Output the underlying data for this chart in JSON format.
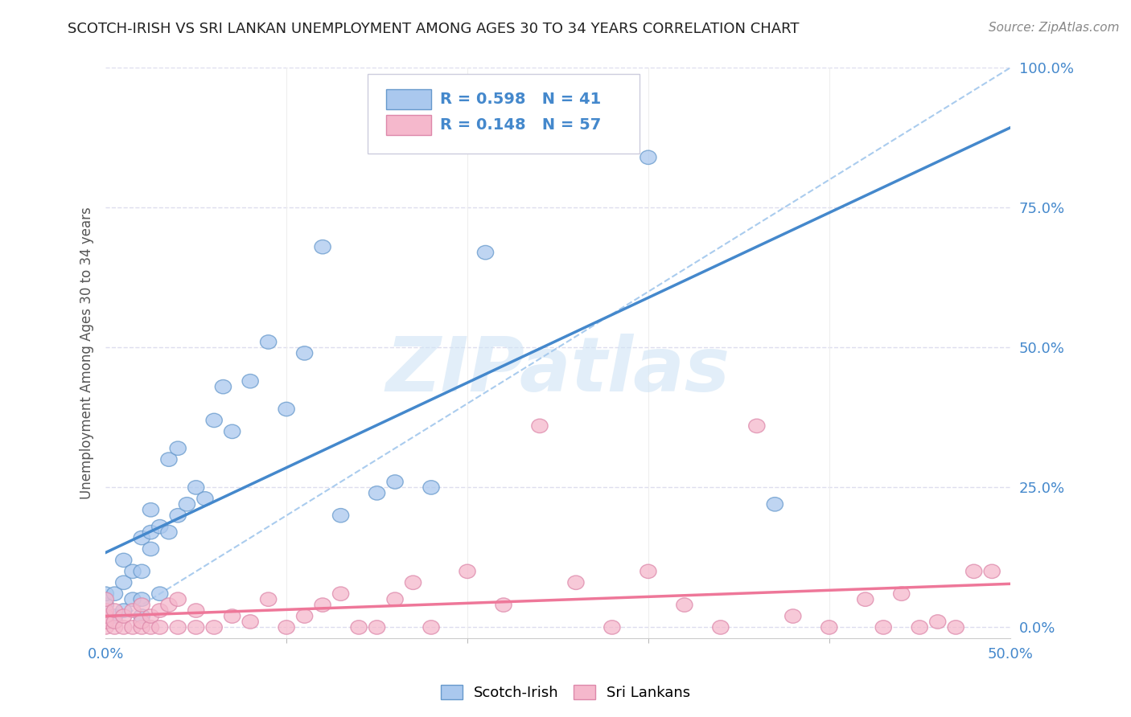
{
  "title": "SCOTCH-IRISH VS SRI LANKAN UNEMPLOYMENT AMONG AGES 30 TO 34 YEARS CORRELATION CHART",
  "source": "Source: ZipAtlas.com",
  "ylabel_label": "Unemployment Among Ages 30 to 34 years",
  "xlim": [
    0.0,
    0.5
  ],
  "ylim": [
    -0.02,
    1.0
  ],
  "xticks_major": [
    0.0,
    0.5
  ],
  "xticks_minor": [
    0.1,
    0.2,
    0.3,
    0.4
  ],
  "yticks": [
    0.0,
    0.25,
    0.5,
    0.75,
    1.0
  ],
  "xtick_labels_major": [
    "0.0%",
    "50.0%"
  ],
  "ytick_labels": [
    "0.0%",
    "25.0%",
    "50.0%",
    "75.0%",
    "100.0%"
  ],
  "background_color": "#ffffff",
  "grid_color": "#ddddee",
  "scotch_irish_color": "#aac8ee",
  "scotch_irish_edge": "#6699cc",
  "sri_lankan_color": "#f5b8cc",
  "sri_lankan_edge": "#dd88aa",
  "scotch_irish_R": "0.598",
  "scotch_irish_N": "41",
  "sri_lankan_R": "0.148",
  "sri_lankan_N": "57",
  "watermark_text": "ZIPatlas",
  "scotch_irish_x": [
    0.0,
    0.0,
    0.0,
    0.005,
    0.005,
    0.01,
    0.01,
    0.01,
    0.015,
    0.015,
    0.02,
    0.02,
    0.02,
    0.02,
    0.025,
    0.025,
    0.025,
    0.03,
    0.03,
    0.035,
    0.035,
    0.04,
    0.04,
    0.045,
    0.05,
    0.055,
    0.06,
    0.065,
    0.07,
    0.08,
    0.09,
    0.1,
    0.11,
    0.12,
    0.13,
    0.15,
    0.16,
    0.18,
    0.21,
    0.3,
    0.37
  ],
  "scotch_irish_y": [
    0.02,
    0.04,
    0.06,
    0.02,
    0.06,
    0.03,
    0.08,
    0.12,
    0.05,
    0.1,
    0.02,
    0.05,
    0.1,
    0.16,
    0.14,
    0.17,
    0.21,
    0.06,
    0.18,
    0.17,
    0.3,
    0.2,
    0.32,
    0.22,
    0.25,
    0.23,
    0.37,
    0.43,
    0.35,
    0.44,
    0.51,
    0.39,
    0.49,
    0.68,
    0.2,
    0.24,
    0.26,
    0.25,
    0.67,
    0.84,
    0.22
  ],
  "sri_lankan_x": [
    0.0,
    0.0,
    0.0,
    0.0,
    0.0,
    0.0,
    0.005,
    0.005,
    0.005,
    0.01,
    0.01,
    0.015,
    0.015,
    0.02,
    0.02,
    0.02,
    0.025,
    0.025,
    0.03,
    0.03,
    0.035,
    0.04,
    0.04,
    0.05,
    0.05,
    0.06,
    0.07,
    0.08,
    0.09,
    0.1,
    0.11,
    0.12,
    0.13,
    0.14,
    0.15,
    0.16,
    0.17,
    0.18,
    0.2,
    0.22,
    0.24,
    0.26,
    0.28,
    0.3,
    0.32,
    0.34,
    0.36,
    0.38,
    0.4,
    0.42,
    0.43,
    0.44,
    0.45,
    0.46,
    0.47,
    0.48,
    0.49
  ],
  "sri_lankan_y": [
    0.0,
    0.01,
    0.01,
    0.02,
    0.03,
    0.05,
    0.0,
    0.01,
    0.03,
    0.0,
    0.02,
    0.0,
    0.03,
    0.0,
    0.01,
    0.04,
    0.0,
    0.02,
    0.0,
    0.03,
    0.04,
    0.0,
    0.05,
    0.0,
    0.03,
    0.0,
    0.02,
    0.01,
    0.05,
    0.0,
    0.02,
    0.04,
    0.06,
    0.0,
    0.0,
    0.05,
    0.08,
    0.0,
    0.1,
    0.04,
    0.36,
    0.08,
    0.0,
    0.1,
    0.04,
    0.0,
    0.36,
    0.02,
    0.0,
    0.05,
    0.0,
    0.06,
    0.0,
    0.01,
    0.0,
    0.1,
    0.1
  ]
}
